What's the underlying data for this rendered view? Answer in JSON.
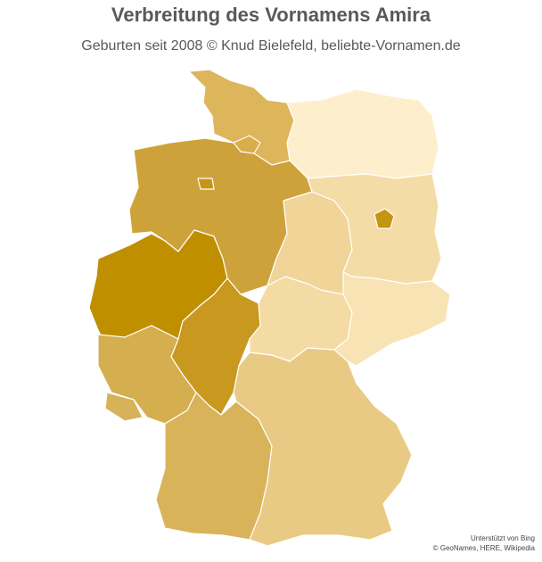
{
  "header": {
    "title": "Verbreitung des Vornamens Amira",
    "subtitle": "Geburten seit 2008 © Knud Bielefeld,  beliebte-Vornamen.de"
  },
  "attribution": [
    "Unterstützt von Bing",
    "© GeoNames, HERE, Wikipedia"
  ]
}
